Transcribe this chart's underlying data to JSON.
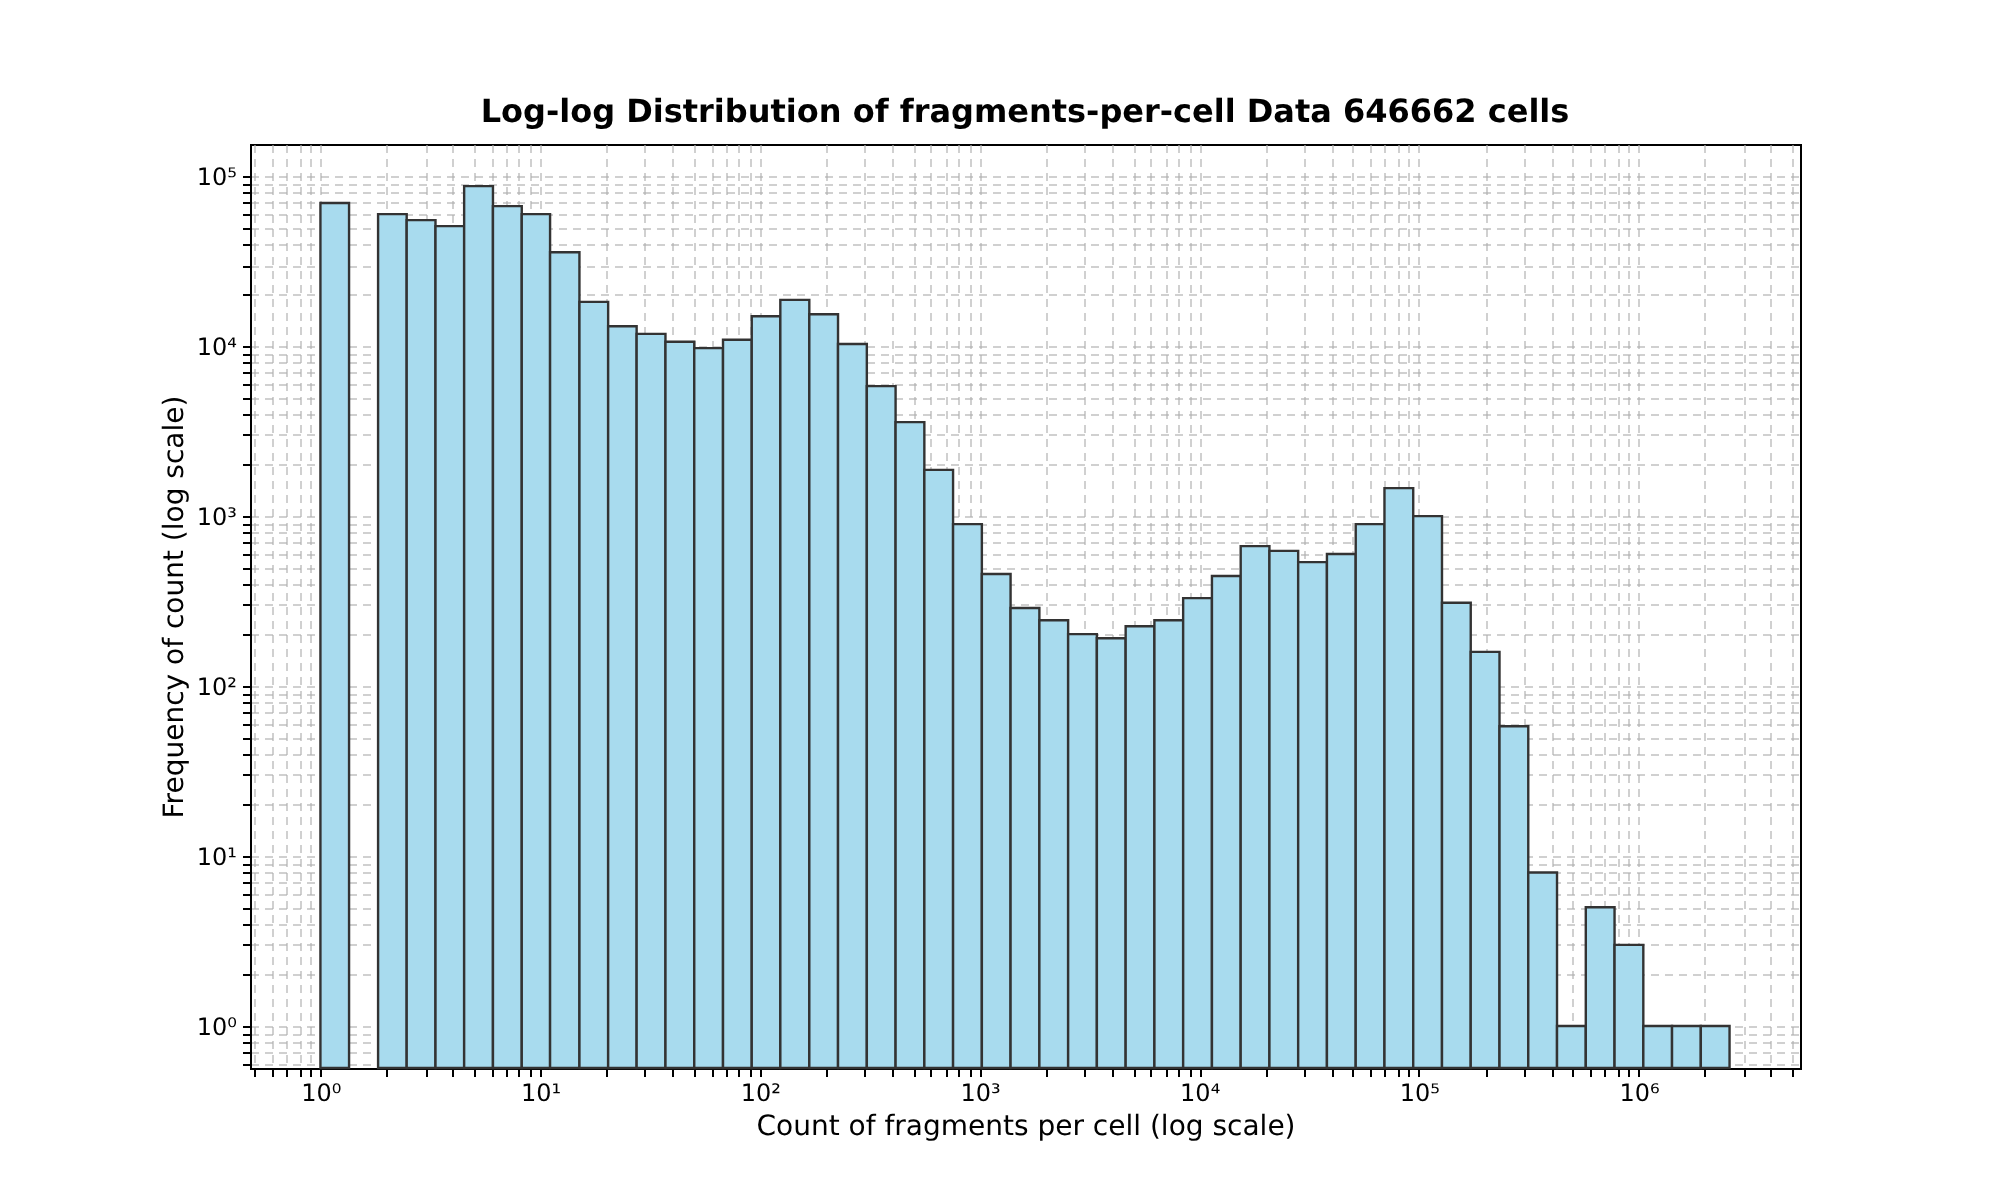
{
  "chart_data": {
    "type": "histogram",
    "title": "Log-log Distribution of fragments-per-cell Data 646662 cells",
    "xlabel": "Count of fragments per cell (log scale)",
    "ylabel": "Frequency of count (log scale)",
    "log": "xy",
    "grid": true,
    "color": "#a8dbee",
    "bins": [
      1,
      1.35,
      1.83,
      2.47,
      3.34,
      4.51,
      6.1,
      8.25,
      11.1,
      15.1,
      20.4,
      27.5,
      37.2,
      50.3,
      68,
      91.9,
      124,
      168,
      227,
      307,
      415,
      561,
      758,
      1025,
      1385,
      1873,
      2532,
      3422,
      4627,
      6254,
      8453,
      11430,
      15450,
      20880,
      28220,
      38150,
      51580,
      69720,
      94240,
      127400,
      172200,
      232800,
      314700,
      425400,
      575100,
      777400,
      1051000,
      1420000,
      1920000,
      2595000
    ],
    "values": [
      69500,
      null,
      59800,
      55100,
      50800,
      87400,
      66600,
      59800,
      35700,
      18200,
      13100,
      11800,
      10600,
      9730,
      10900,
      15000,
      18700,
      15400,
      10300,
      5820,
      3570,
      1870,
      897,
      456,
      288,
      244,
      202,
      191,
      225,
      244,
      329,
      444,
      666,
      624,
      536,
      598,
      897,
      1460,
      1000,
      309,
      159,
      58,
      8,
      1,
      5,
      3,
      1,
      1,
      1
    ],
    "xlim": [
      0.478,
      5430000
    ],
    "ylim": [
      0.566,
      154600
    ],
    "xticks": [
      {
        "value": 0.5,
        "label": null
      },
      {
        "value": 0.6,
        "label": null
      },
      {
        "value": 0.7,
        "label": null
      },
      {
        "value": 0.8,
        "label": null
      },
      {
        "value": 0.9,
        "label": null
      },
      {
        "value": 1,
        "label": "10⁰"
      },
      {
        "value": 2,
        "label": null
      },
      {
        "value": 3,
        "label": null
      },
      {
        "value": 4,
        "label": null
      },
      {
        "value": 5,
        "label": null
      },
      {
        "value": 6,
        "label": null
      },
      {
        "value": 7,
        "label": null
      },
      {
        "value": 8,
        "label": null
      },
      {
        "value": 9,
        "label": null
      },
      {
        "value": 10,
        "label": "10¹"
      },
      {
        "value": 20,
        "label": null
      },
      {
        "value": 30,
        "label": null
      },
      {
        "value": 40,
        "label": null
      },
      {
        "value": 50,
        "label": null
      },
      {
        "value": 60,
        "label": null
      },
      {
        "value": 70,
        "label": null
      },
      {
        "value": 80,
        "label": null
      },
      {
        "value": 90,
        "label": null
      },
      {
        "value": 100,
        "label": "10²"
      },
      {
        "value": 200,
        "label": null
      },
      {
        "value": 300,
        "label": null
      },
      {
        "value": 400,
        "label": null
      },
      {
        "value": 500,
        "label": null
      },
      {
        "value": 600,
        "label": null
      },
      {
        "value": 700,
        "label": null
      },
      {
        "value": 800,
        "label": null
      },
      {
        "value": 900,
        "label": null
      },
      {
        "value": 1000,
        "label": "10³"
      },
      {
        "value": 2000,
        "label": null
      },
      {
        "value": 3000,
        "label": null
      },
      {
        "value": 4000,
        "label": null
      },
      {
        "value": 5000,
        "label": null
      },
      {
        "value": 6000,
        "label": null
      },
      {
        "value": 7000,
        "label": null
      },
      {
        "value": 8000,
        "label": null
      },
      {
        "value": 9000,
        "label": null
      },
      {
        "value": 10000,
        "label": "10⁴"
      },
      {
        "value": 20000,
        "label": null
      },
      {
        "value": 30000,
        "label": null
      },
      {
        "value": 40000,
        "label": null
      },
      {
        "value": 50000,
        "label": null
      },
      {
        "value": 60000,
        "label": null
      },
      {
        "value": 70000,
        "label": null
      },
      {
        "value": 80000,
        "label": null
      },
      {
        "value": 90000,
        "label": null
      },
      {
        "value": 100000,
        "label": "10⁵"
      },
      {
        "value": 200000,
        "label": null
      },
      {
        "value": 300000,
        "label": null
      },
      {
        "value": 400000,
        "label": null
      },
      {
        "value": 500000,
        "label": null
      },
      {
        "value": 600000,
        "label": null
      },
      {
        "value": 700000,
        "label": null
      },
      {
        "value": 800000,
        "label": null
      },
      {
        "value": 900000,
        "label": null
      },
      {
        "value": 1000000,
        "label": "10⁶"
      },
      {
        "value": 2000000,
        "label": null
      },
      {
        "value": 3000000,
        "label": null
      },
      {
        "value": 4000000,
        "label": null
      },
      {
        "value": 5000000,
        "label": null
      }
    ],
    "yticks": [
      {
        "value": 0.6,
        "label": null
      },
      {
        "value": 0.7,
        "label": null
      },
      {
        "value": 0.8,
        "label": null
      },
      {
        "value": 0.9,
        "label": null
      },
      {
        "value": 1,
        "label": "10⁰"
      },
      {
        "value": 2,
        "label": null
      },
      {
        "value": 3,
        "label": null
      },
      {
        "value": 4,
        "label": null
      },
      {
        "value": 5,
        "label": null
      },
      {
        "value": 6,
        "label": null
      },
      {
        "value": 7,
        "label": null
      },
      {
        "value": 8,
        "label": null
      },
      {
        "value": 9,
        "label": null
      },
      {
        "value": 10,
        "label": "10¹"
      },
      {
        "value": 20,
        "label": null
      },
      {
        "value": 30,
        "label": null
      },
      {
        "value": 40,
        "label": null
      },
      {
        "value": 50,
        "label": null
      },
      {
        "value": 60,
        "label": null
      },
      {
        "value": 70,
        "label": null
      },
      {
        "value": 80,
        "label": null
      },
      {
        "value": 90,
        "label": null
      },
      {
        "value": 100,
        "label": "10²"
      },
      {
        "value": 200,
        "label": null
      },
      {
        "value": 300,
        "label": null
      },
      {
        "value": 400,
        "label": null
      },
      {
        "value": 500,
        "label": null
      },
      {
        "value": 600,
        "label": null
      },
      {
        "value": 700,
        "label": null
      },
      {
        "value": 800,
        "label": null
      },
      {
        "value": 900,
        "label": null
      },
      {
        "value": 1000,
        "label": "10³"
      },
      {
        "value": 2000,
        "label": null
      },
      {
        "value": 3000,
        "label": null
      },
      {
        "value": 4000,
        "label": null
      },
      {
        "value": 5000,
        "label": null
      },
      {
        "value": 6000,
        "label": null
      },
      {
        "value": 7000,
        "label": null
      },
      {
        "value": 8000,
        "label": null
      },
      {
        "value": 9000,
        "label": null
      },
      {
        "value": 10000,
        "label": "10⁴"
      },
      {
        "value": 20000,
        "label": null
      },
      {
        "value": 30000,
        "label": null
      },
      {
        "value": 40000,
        "label": null
      },
      {
        "value": 50000,
        "label": null
      },
      {
        "value": 60000,
        "label": null
      },
      {
        "value": 70000,
        "label": null
      },
      {
        "value": 80000,
        "label": null
      },
      {
        "value": 90000,
        "label": null
      },
      {
        "value": 100000,
        "label": "10⁵"
      }
    ]
  }
}
